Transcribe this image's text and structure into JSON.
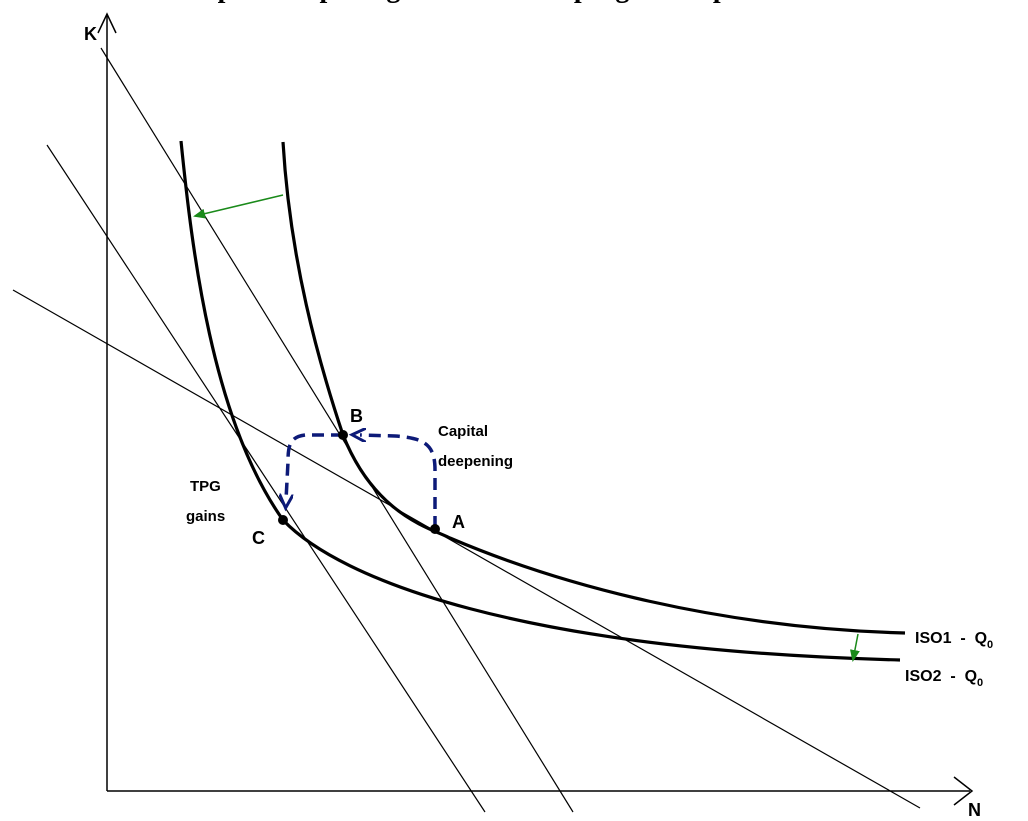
{
  "title_partial": "Capital deepening and technical progress in production",
  "axes": {
    "y_label": "K",
    "x_label": "N"
  },
  "points": {
    "a": "A",
    "b": "B",
    "c": "C"
  },
  "annotations": {
    "capital_line1": "Capital",
    "capital_line2": "deepening",
    "tpg_line1": "TPG",
    "tpg_line2": "gains"
  },
  "isoquants": {
    "iso1_prefix": "ISO1  -  Q",
    "iso1_sub": "0",
    "iso2_prefix": "ISO2  -  Q",
    "iso2_sub": "0"
  },
  "colors": {
    "curve": "#000000",
    "shift_arrow": "#1a8a1a",
    "path_arrow": "#0d1a78"
  }
}
